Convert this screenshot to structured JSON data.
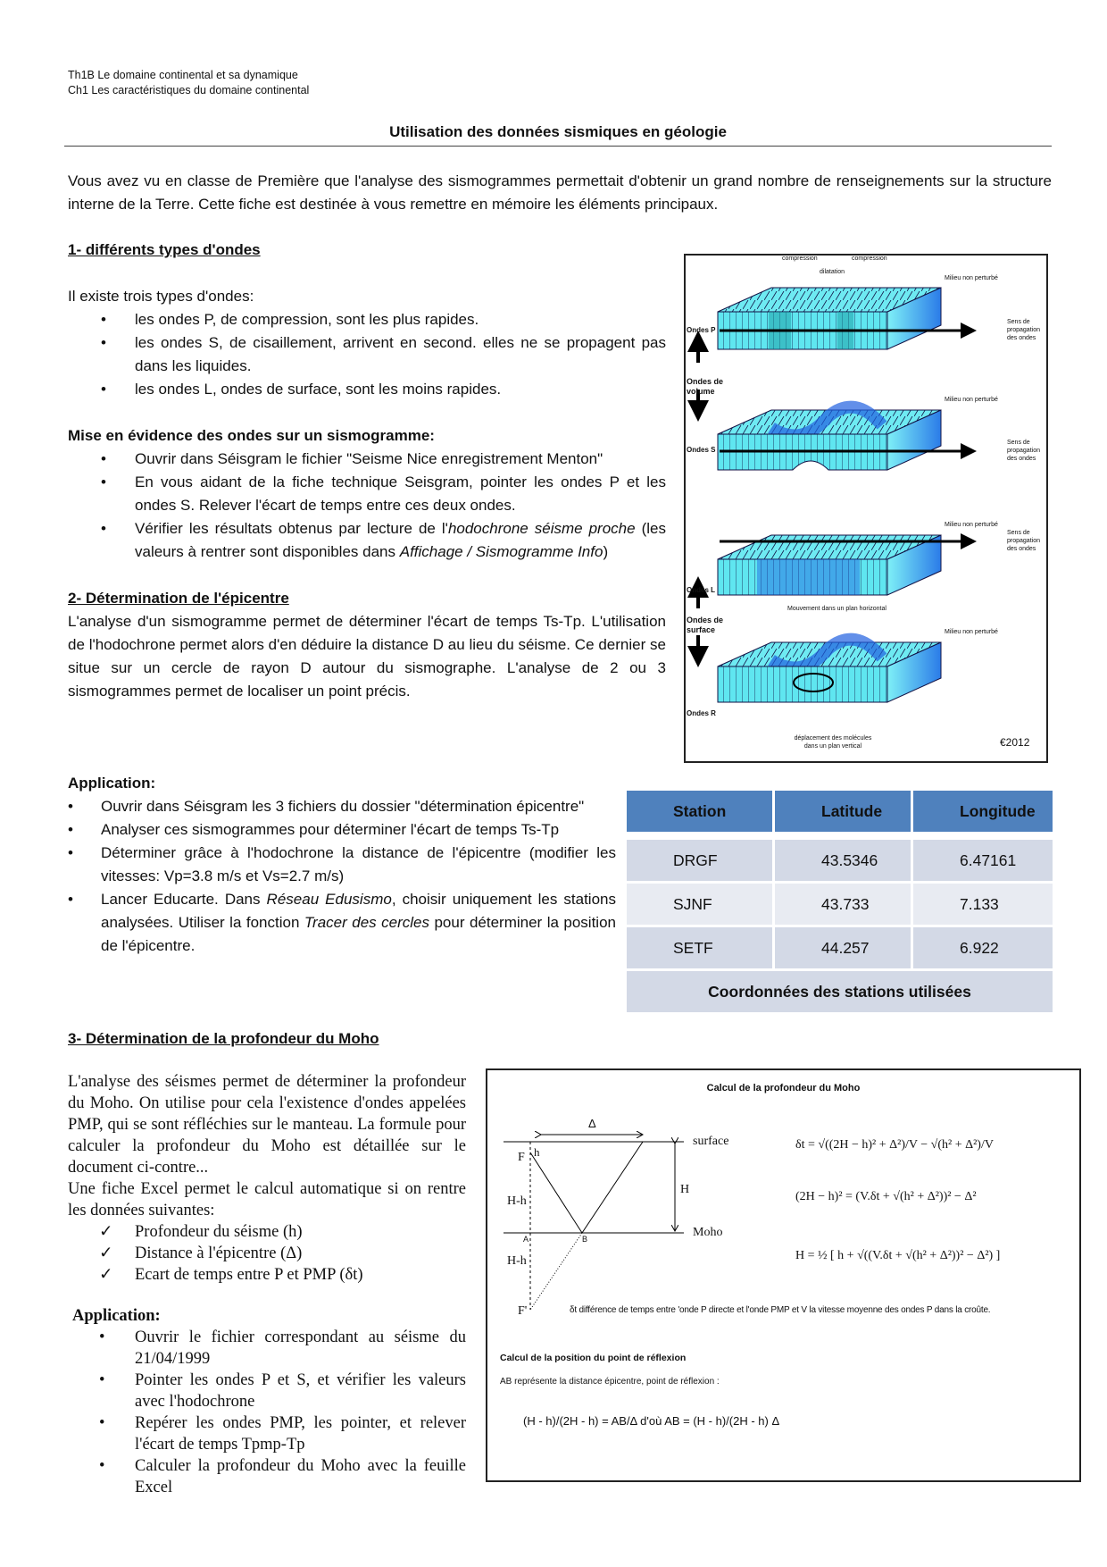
{
  "header": {
    "line1": "Th1B Le domaine continental et sa dynamique",
    "line2": "Ch1 Les caractéristiques du domaine continental"
  },
  "title": "Utilisation des données sismiques en géologie",
  "intro": "Vous avez vu en classe de Première que l'analyse des sismogrammes permettait d'obtenir un grand nombre de renseignements sur la structure interne de la Terre. Cette fiche est destinée à vous remettre en mémoire les éléments principaux.",
  "section1": {
    "heading": "1- différents types d'ondes",
    "lead": "Il existe trois types d'ondes:",
    "items": [
      "les ondes P, de compression, sont les plus rapides.",
      "les ondes S, de cisaillement, arrivent en second. elles ne se propagent pas dans les liquides.",
      "les ondes L, ondes de surface, sont les moins rapides."
    ],
    "subheading": "Mise en évidence des ondes sur un sismogramme:",
    "steps": [
      {
        "text": "Ouvrir dans Séisgram le fichier \"Seisme Nice enregistrement Menton\""
      },
      {
        "text": "En vous aidant de la fiche technique Seisgram, pointer les ondes P et les ondes S. Relever l'écart de temps entre ces deux ondes."
      },
      {
        "a": "Vérifier les résultats obtenus par lecture de l'",
        "b": "hodochrone séisme proche",
        "c": " (les valeurs à rentrer sont disponibles dans ",
        "d": "Affichage / Sismogramme Info",
        "e": ")"
      }
    ]
  },
  "section2": {
    "heading": "2- Détermination de l'épicentre",
    "paragraph": "L'analyse d'un sismogramme permet de déterminer l'écart de temps Ts-Tp. L'utilisation de l'hodochrone permet alors d'en déduire la distance D au lieu du séisme. Ce dernier se situe sur un cercle de rayon D autour du sismographe. L'analyse de 2 ou 3 sismogrammes permet de localiser un point précis.",
    "app_heading": "Application:",
    "app_items": [
      {
        "text": "Ouvrir dans Séisgram les 3 fichiers du dossier \"détermination épicentre\""
      },
      {
        "text": "Analyser ces sismogrammes pour déterminer l'écart de temps Ts-Tp"
      },
      {
        "text": "Déterminer grâce à l'hodochrone la distance de l'épicentre (modifier les vitesses: Vp=3.8 m/s et Vs=2.7 m/s)"
      },
      {
        "a": "Lancer Educarte. Dans ",
        "b": "Réseau Edusismo",
        "c": ", choisir uniquement les stations analysées. Utiliser la fonction ",
        "d": "Tracer des cercles",
        "e": " pour déterminer la position de l'épicentre."
      }
    ]
  },
  "waves_figure": {
    "compression": "compression",
    "dilatation": "dilatation",
    "undisturbed": "Milieu non perturbé",
    "propagation": [
      "Sens de",
      "propagation",
      "des ondes"
    ],
    "p": "Ondes P",
    "s": "Ondes S",
    "l": "Ondes L",
    "r": "Ondes R",
    "volume": [
      "Ondes de",
      "volume"
    ],
    "surface": [
      "Ondes de",
      "surface"
    ],
    "horizontal": "Mouvement dans un plan horizontal",
    "vertical": [
      "déplacement des molécules",
      "dans un plan vertical"
    ],
    "copyright": "€2012",
    "colors": {
      "cyan": "#5fe6f0",
      "blue": "#1f5fe0"
    }
  },
  "stations_table": {
    "headers": [
      "Station",
      "Latitude",
      "Longitude"
    ],
    "rows": [
      [
        "DRGF",
        "43.5346",
        "6.47161"
      ],
      [
        "SJNF",
        "43.733",
        "7.133"
      ],
      [
        "SETF",
        "44.257",
        "6.922"
      ]
    ],
    "caption": "Coordonnées des stations utilisées",
    "colors": {
      "header": "#4f81bd",
      "row": "#d3d9e6",
      "row_alt": "#e8ebf2"
    }
  },
  "section3": {
    "heading": "3- Détermination de la profondeur du Moho",
    "paragraph": "L'analyse des séismes permet de déterminer la profondeur du Moho. On utilise pour cela l'existence d'ondes appelées PMP, qui se sont réfléchies sur le manteau. La formule pour calculer la profondeur du Moho est détaillée sur le document ci-contre...",
    "paragraph2": "Une fiche Excel permet le calcul automatique si on rentre les données suivantes:",
    "checks": [
      "Profondeur du séisme (h)",
      "Distance à l'épicentre (Δ)",
      "Ecart de temps entre P et PMP (δt)"
    ],
    "app_heading": "Application:",
    "app_items": [
      "Ouvrir le fichier correspondant au séisme du 21/04/1999",
      "Pointer les ondes P et S, et vérifier les valeurs avec l'hodochrone",
      "Repérer les ondes PMP, les pointer, et relever l'écart de temps Tpmp-Tp",
      "Calculer la profondeur du Moho avec la feuille Excel"
    ]
  },
  "moho_figure": {
    "title": "Calcul de la profondeur du Moho",
    "labels": {
      "delta": "Δ",
      "surface": "surface",
      "moho": "Moho",
      "F": "F",
      "Fp": "F'",
      "h": "h",
      "Hh": "H-h",
      "H": "H",
      "A": "A",
      "B": "B"
    },
    "formula1": "δt = √((2H − h)² + Δ²)/V − √(h² + Δ²)/V",
    "formula2": "(2H − h)² = (V.δt + √(h² + Δ²))² − Δ²",
    "formula3": "H = ½ [ h + √((V.δt + √(h² + Δ²))² − Δ²) ]",
    "note": "δt différence de temps entre 'onde P directe et l'onde PMP et V la vitesse moyenne des ondes P dans la croûte.",
    "reflection_title": "Calcul de la position du point de réflexion",
    "reflection_text": "AB représente la distance épicentre, point de réflexion :",
    "reflection_formula": "(H - h)/(2H - h) = AB/Δ d'où AB = (H - h)/(2H - h) Δ"
  }
}
